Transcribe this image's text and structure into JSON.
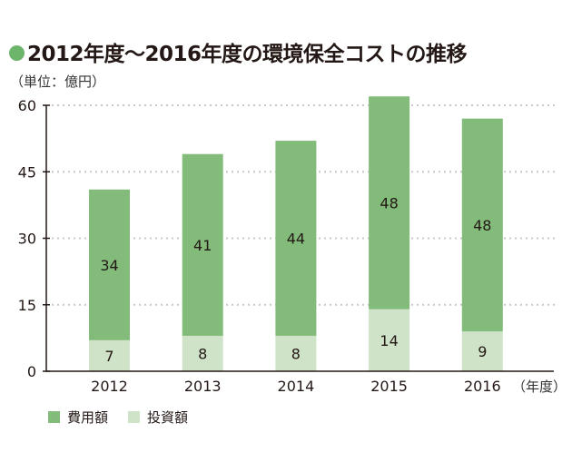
{
  "chart_data": {
    "type": "bar",
    "stacked": true,
    "title": "2012年度～2016年度の環境保全コストの推移",
    "ylabel": "（単位：億円）",
    "xlabel": "（年度）",
    "categories": [
      "2012",
      "2013",
      "2014",
      "2015",
      "2016"
    ],
    "series": [
      {
        "name": "投資額",
        "values": [
          7,
          8,
          8,
          14,
          9
        ],
        "color": "#cfe3c8"
      },
      {
        "name": "費用額",
        "values": [
          34,
          41,
          44,
          48,
          48
        ],
        "color": "#82bb7a"
      }
    ],
    "ylim": [
      0,
      60
    ],
    "yticks": [
      0,
      15,
      30,
      45,
      60
    ],
    "grid": "horizontal dotted",
    "legend": "bottom-left",
    "title_dot_color": "#6cb56a"
  }
}
